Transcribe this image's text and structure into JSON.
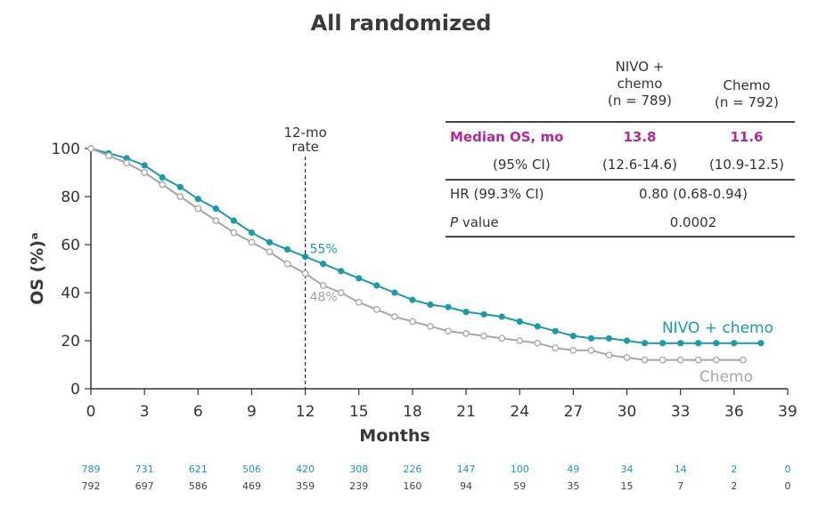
{
  "title": "All randomized",
  "table": {
    "columns": [
      "NIVO +\nchemo\n(n = 789)",
      "Chemo\n(n = 792)"
    ],
    "rows": [
      {
        "label": "Median OS, mo",
        "nivo": "13.8",
        "chemo": "11.6",
        "highlight": true
      },
      {
        "label": "(95% CI)",
        "nivo": "(12.6-14.6)",
        "chemo": "(10.9-12.5)"
      },
      {
        "label": "HR (99.3% CI)",
        "merged": "0.80 (0.68-0.94)"
      },
      {
        "label_italic": "P",
        "label_rest": " value",
        "merged": "0.0002"
      }
    ]
  },
  "colors": {
    "nivo": "#1a9ba8",
    "chemo": "#a6a6a6",
    "highlight": "#b5279c",
    "axis": "#333333"
  },
  "chart_data": {
    "type": "line",
    "xlabel": "Months",
    "ylabel": "OS (%)ᵃ",
    "xlim": [
      0,
      39
    ],
    "ylim": [
      0,
      100
    ],
    "xticks": [
      0,
      3,
      6,
      9,
      12,
      15,
      18,
      21,
      24,
      27,
      30,
      33,
      36,
      39
    ],
    "yticks": [
      0,
      20,
      40,
      60,
      80,
      100
    ],
    "reference_line": {
      "x": 12,
      "label": "12-mo\nrate"
    },
    "annotations": [
      {
        "text": "55%",
        "series": "NIVO + chemo"
      },
      {
        "text": "48%",
        "series": "Chemo"
      }
    ],
    "series": [
      {
        "name": "NIVO + chemo",
        "x": [
          0,
          1,
          2,
          3,
          4,
          5,
          6,
          7,
          8,
          9,
          10,
          11,
          12,
          13,
          14,
          15,
          16,
          17,
          18,
          19,
          20,
          21,
          22,
          23,
          24,
          25,
          26,
          27,
          28,
          29,
          30,
          31,
          32,
          33,
          34,
          35,
          36,
          37.5
        ],
        "y": [
          100,
          98,
          96,
          93,
          88,
          84,
          79,
          75,
          70,
          65,
          61,
          58,
          55,
          52,
          49,
          46,
          43,
          40,
          37,
          35,
          34,
          32,
          31,
          30,
          28,
          26,
          24,
          22,
          21,
          21,
          20,
          19,
          19,
          19,
          19,
          19,
          19,
          19
        ]
      },
      {
        "name": "Chemo",
        "x": [
          0,
          1,
          2,
          3,
          4,
          5,
          6,
          7,
          8,
          9,
          10,
          11,
          12,
          13,
          14,
          15,
          16,
          17,
          18,
          19,
          20,
          21,
          22,
          23,
          24,
          25,
          26,
          27,
          28,
          29,
          30,
          31,
          32,
          33,
          34,
          35,
          36.5
        ],
        "y": [
          100,
          97,
          94,
          90,
          85,
          80,
          75,
          70,
          65,
          61,
          57,
          52,
          48,
          43,
          40,
          36,
          33,
          30,
          28,
          26,
          24,
          23,
          22,
          21,
          20,
          19,
          17,
          16,
          16,
          14,
          13,
          12,
          12,
          12,
          12,
          12,
          12
        ]
      }
    ],
    "legend": [
      {
        "text": "NIVO + chemo",
        "series": "NIVO + chemo"
      },
      {
        "text": "Chemo",
        "series": "Chemo"
      }
    ],
    "at_risk": {
      "x": [
        0,
        3,
        6,
        9,
        12,
        15,
        18,
        21,
        24,
        27,
        30,
        33,
        36,
        39
      ],
      "nivo": [
        789,
        731,
        621,
        506,
        420,
        308,
        226,
        147,
        100,
        49,
        34,
        14,
        2,
        0
      ],
      "chemo": [
        792,
        697,
        586,
        469,
        359,
        239,
        160,
        94,
        59,
        35,
        15,
        7,
        2,
        0
      ]
    }
  }
}
